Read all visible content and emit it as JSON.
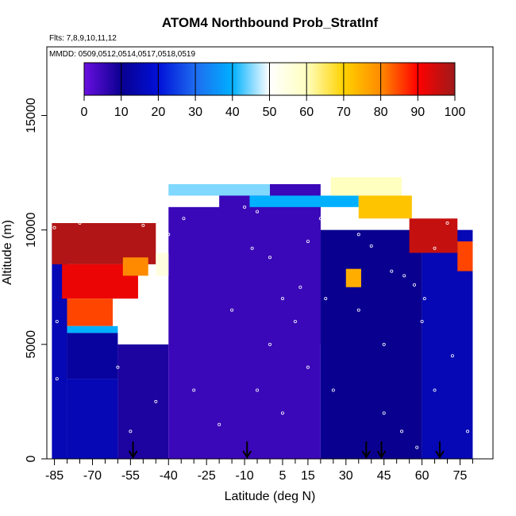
{
  "chart_data": {
    "type": "heatmap",
    "title": "ATOM4 Northbound Prob_StratInf",
    "annotations": [
      "Flts: 7,8,9,10,11,12",
      "MMDD: 0509,0512,0514,0517,0518,0519"
    ],
    "xlabel": "Latitude (deg N)",
    "ylabel": "Altitude (m)",
    "xlim": [
      -88,
      88
    ],
    "ylim": [
      0,
      18000
    ],
    "x_ticks": [
      -85,
      -70,
      -55,
      -40,
      -25,
      -10,
      5,
      15,
      30,
      45,
      60,
      75
    ],
    "y_ticks": [
      0,
      5000,
      10000,
      15000
    ],
    "colorbar": {
      "min": 0,
      "max": 100,
      "ticks": [
        0,
        10,
        20,
        30,
        40,
        50,
        60,
        70,
        80,
        90,
        100
      ],
      "palette": [
        "#6a0fe0",
        "#0a0090",
        "#0010d8",
        "#1e6cf0",
        "#00b0ff",
        "#ffffff",
        "#ffffc0",
        "#ffd200",
        "#ff8a00",
        "#ff0000",
        "#9e1a1a"
      ]
    },
    "arrow_latitudes": [
      -54,
      -9,
      38,
      44,
      67
    ],
    "regions": [
      {
        "lat0": -86,
        "lat1": -80,
        "alt0": 0,
        "alt1": 10000,
        "value": 15
      },
      {
        "lat0": -80,
        "lat1": -60,
        "alt0": 0,
        "alt1": 3500,
        "value": 15
      },
      {
        "lat0": -80,
        "lat1": -60,
        "alt0": 3500,
        "alt1": 5500,
        "value": 12
      },
      {
        "lat0": -60,
        "lat1": -40,
        "alt0": 0,
        "alt1": 5000,
        "value": 8
      },
      {
        "lat0": -40,
        "lat1": 20,
        "alt0": 0,
        "alt1": 11000,
        "value": 5
      },
      {
        "lat0": -20,
        "lat1": 20,
        "alt0": 5000,
        "alt1": 12000,
        "value": 5
      },
      {
        "lat0": 20,
        "lat1": 60,
        "alt0": 0,
        "alt1": 10000,
        "value": 10
      },
      {
        "lat0": 60,
        "lat1": 80,
        "alt0": 0,
        "alt1": 10000,
        "value": 15
      },
      {
        "lat0": -86,
        "lat1": -45,
        "alt0": 8500,
        "alt1": 10300,
        "value": 98
      },
      {
        "lat0": -82,
        "lat1": -52,
        "alt0": 7000,
        "alt1": 8500,
        "value": 92
      },
      {
        "lat0": -80,
        "lat1": -62,
        "alt0": 5800,
        "alt1": 7000,
        "value": 85
      },
      {
        "lat0": -80,
        "lat1": -60,
        "alt0": 5500,
        "alt1": 5800,
        "value": 40
      },
      {
        "lat0": -45,
        "lat1": -40,
        "alt0": 8000,
        "alt1": 9000,
        "value": 55
      },
      {
        "lat0": -58,
        "lat1": -48,
        "alt0": 8000,
        "alt1": 8800,
        "value": 80
      },
      {
        "lat0": -8,
        "lat1": 35,
        "alt0": 11000,
        "alt1": 11500,
        "value": 40
      },
      {
        "lat0": 24,
        "lat1": 52,
        "alt0": 11500,
        "alt1": 12300,
        "value": 60
      },
      {
        "lat0": 35,
        "lat1": 56,
        "alt0": 10500,
        "alt1": 11500,
        "value": 72
      },
      {
        "lat0": 55,
        "lat1": 74,
        "alt0": 9000,
        "alt1": 10500,
        "value": 96
      },
      {
        "lat0": 74,
        "lat1": 80,
        "alt0": 8200,
        "alt1": 9500,
        "value": 85
      },
      {
        "lat0": 30,
        "lat1": 36,
        "alt0": 7500,
        "alt1": 8300,
        "value": 75
      },
      {
        "lat0": -40,
        "lat1": 0,
        "alt0": 11500,
        "alt1": 12000,
        "value": 45
      }
    ],
    "points": [
      [
        -85,
        10100
      ],
      [
        -75,
        10300
      ],
      [
        -68,
        10500
      ],
      [
        -60,
        10500
      ],
      [
        -50,
        10200
      ],
      [
        -40,
        9800
      ],
      [
        -34,
        10500
      ],
      [
        -10,
        11000
      ],
      [
        -5,
        10800
      ],
      [
        -7,
        9200
      ],
      [
        0,
        8800
      ],
      [
        5,
        7000
      ],
      [
        10,
        6000
      ],
      [
        15,
        9500
      ],
      [
        20,
        10500
      ],
      [
        27,
        10700
      ],
      [
        30,
        10300
      ],
      [
        35,
        9800
      ],
      [
        40,
        9300
      ],
      [
        48,
        8200
      ],
      [
        53,
        8000
      ],
      [
        57,
        7600
      ],
      [
        61,
        7000
      ],
      [
        65,
        9200
      ],
      [
        70,
        10300
      ],
      [
        75,
        10500
      ],
      [
        -84,
        6000
      ],
      [
        -84,
        3500
      ],
      [
        -60,
        4000
      ],
      [
        -55,
        1200
      ],
      [
        -45,
        2500
      ],
      [
        -30,
        3000
      ],
      [
        -20,
        1500
      ],
      [
        -5,
        3000
      ],
      [
        5,
        2000
      ],
      [
        15,
        4000
      ],
      [
        25,
        3000
      ],
      [
        45,
        2000
      ],
      [
        52,
        1200
      ],
      [
        58,
        500
      ],
      [
        65,
        3000
      ],
      [
        72,
        4500
      ],
      [
        78,
        1200
      ],
      [
        -15,
        6500
      ],
      [
        0,
        5000
      ],
      [
        12,
        7500
      ],
      [
        22,
        7000
      ],
      [
        35,
        6500
      ],
      [
        45,
        5000
      ],
      [
        60,
        6000
      ]
    ]
  }
}
